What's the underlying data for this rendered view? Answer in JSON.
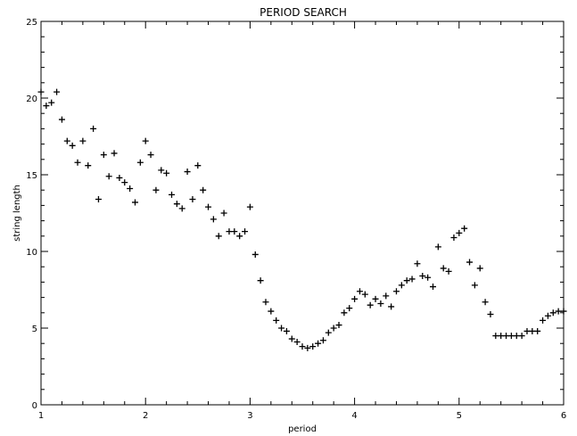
{
  "chart_data": {
    "type": "scatter",
    "title": "PERIOD SEARCH",
    "xlabel": "period",
    "ylabel": "string length",
    "xlim": [
      1,
      6
    ],
    "ylim": [
      0,
      25
    ],
    "xticks": [
      1,
      2,
      3,
      4,
      5,
      6
    ],
    "yticks": [
      0,
      5,
      10,
      15,
      20,
      25
    ],
    "xtick_labels": [
      "1",
      "2",
      "3",
      "4",
      "5",
      "6"
    ],
    "ytick_labels": [
      "0",
      "5",
      "10",
      "15",
      "20",
      "25"
    ],
    "grid": false,
    "marker": "plus",
    "points": [
      [
        1.0,
        20.4
      ],
      [
        1.05,
        19.5
      ],
      [
        1.1,
        19.7
      ],
      [
        1.15,
        20.4
      ],
      [
        1.2,
        18.6
      ],
      [
        1.25,
        17.2
      ],
      [
        1.3,
        16.9
      ],
      [
        1.35,
        15.8
      ],
      [
        1.4,
        17.2
      ],
      [
        1.45,
        15.6
      ],
      [
        1.5,
        18.0
      ],
      [
        1.55,
        13.4
      ],
      [
        1.6,
        16.3
      ],
      [
        1.65,
        14.9
      ],
      [
        1.7,
        16.4
      ],
      [
        1.75,
        14.8
      ],
      [
        1.8,
        14.5
      ],
      [
        1.85,
        14.1
      ],
      [
        1.9,
        13.2
      ],
      [
        1.95,
        15.8
      ],
      [
        2.0,
        17.2
      ],
      [
        2.05,
        16.3
      ],
      [
        2.1,
        14.0
      ],
      [
        2.15,
        15.3
      ],
      [
        2.2,
        15.1
      ],
      [
        2.25,
        13.7
      ],
      [
        2.3,
        13.1
      ],
      [
        2.35,
        12.8
      ],
      [
        2.4,
        15.2
      ],
      [
        2.45,
        13.4
      ],
      [
        2.5,
        15.6
      ],
      [
        2.55,
        14.0
      ],
      [
        2.6,
        12.9
      ],
      [
        2.65,
        12.1
      ],
      [
        2.7,
        11.0
      ],
      [
        2.75,
        12.5
      ],
      [
        2.8,
        11.3
      ],
      [
        2.85,
        11.3
      ],
      [
        2.9,
        11.0
      ],
      [
        2.95,
        11.3
      ],
      [
        3.0,
        12.9
      ],
      [
        3.05,
        9.8
      ],
      [
        3.1,
        8.1
      ],
      [
        3.15,
        6.7
      ],
      [
        3.2,
        6.1
      ],
      [
        3.25,
        5.5
      ],
      [
        3.3,
        5.0
      ],
      [
        3.35,
        4.8
      ],
      [
        3.4,
        4.3
      ],
      [
        3.45,
        4.1
      ],
      [
        3.5,
        3.8
      ],
      [
        3.55,
        3.7
      ],
      [
        3.6,
        3.8
      ],
      [
        3.65,
        4.0
      ],
      [
        3.7,
        4.2
      ],
      [
        3.75,
        4.7
      ],
      [
        3.8,
        5.0
      ],
      [
        3.85,
        5.2
      ],
      [
        3.9,
        6.0
      ],
      [
        3.95,
        6.3
      ],
      [
        4.0,
        6.9
      ],
      [
        4.05,
        7.4
      ],
      [
        4.1,
        7.2
      ],
      [
        4.15,
        6.5
      ],
      [
        4.2,
        6.9
      ],
      [
        4.25,
        6.6
      ],
      [
        4.3,
        7.1
      ],
      [
        4.35,
        6.4
      ],
      [
        4.4,
        7.4
      ],
      [
        4.45,
        7.8
      ],
      [
        4.5,
        8.1
      ],
      [
        4.55,
        8.2
      ],
      [
        4.6,
        9.2
      ],
      [
        4.65,
        8.4
      ],
      [
        4.7,
        8.3
      ],
      [
        4.75,
        7.7
      ],
      [
        4.8,
        10.3
      ],
      [
        4.85,
        8.9
      ],
      [
        4.9,
        8.7
      ],
      [
        4.95,
        10.9
      ],
      [
        5.0,
        11.2
      ],
      [
        5.05,
        11.5
      ],
      [
        5.1,
        9.3
      ],
      [
        5.15,
        7.8
      ],
      [
        5.2,
        8.9
      ],
      [
        5.25,
        6.7
      ],
      [
        5.3,
        5.9
      ],
      [
        5.35,
        4.5
      ],
      [
        5.4,
        4.5
      ],
      [
        5.45,
        4.5
      ],
      [
        5.5,
        4.5
      ],
      [
        5.55,
        4.5
      ],
      [
        5.6,
        4.5
      ],
      [
        5.65,
        4.8
      ],
      [
        5.7,
        4.8
      ],
      [
        5.75,
        4.8
      ],
      [
        5.8,
        5.5
      ],
      [
        5.85,
        5.8
      ],
      [
        5.9,
        6.0
      ],
      [
        5.95,
        6.1
      ],
      [
        6.0,
        6.1
      ]
    ]
  }
}
